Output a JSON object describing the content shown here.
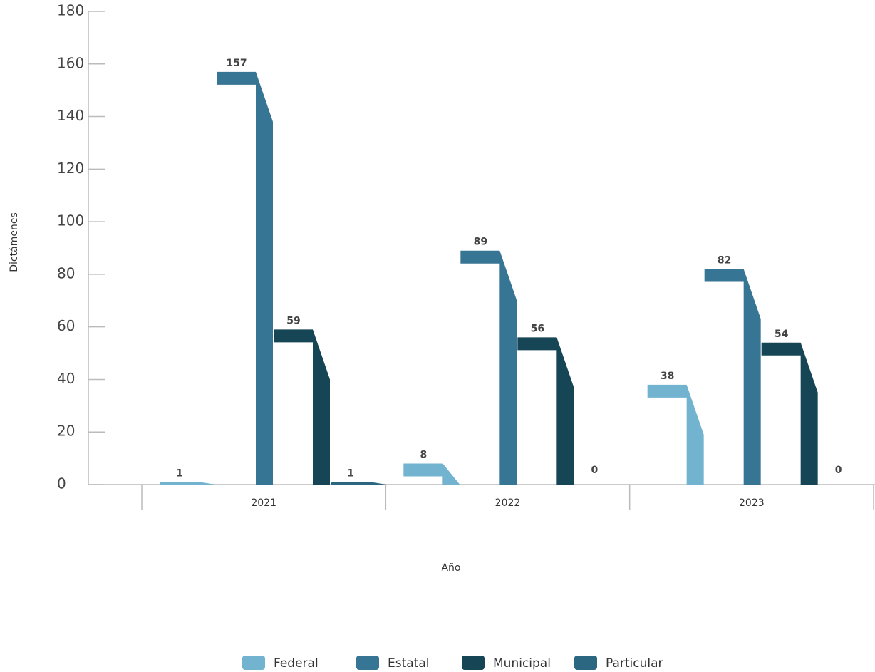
{
  "chart_data": {
    "type": "bar",
    "x_label": "Año",
    "y_label": "Dictámenes",
    "categories": [
      "2021",
      "2022",
      "2023"
    ],
    "series": [
      {
        "name": "Federal",
        "color": "#72b3d0",
        "values": [
          1,
          8,
          38
        ]
      },
      {
        "name": "Estatal",
        "color": "#377594",
        "values": [
          157,
          89,
          82
        ]
      },
      {
        "name": "Municipal",
        "color": "#164556",
        "values": [
          59,
          56,
          54
        ]
      },
      {
        "name": "Particular",
        "color": "#2b6780",
        "values": [
          1,
          0,
          0
        ]
      }
    ],
    "ylim": [
      0,
      180
    ],
    "yticks": [
      0,
      20,
      40,
      60,
      80,
      100,
      120,
      140,
      160,
      180
    ]
  }
}
